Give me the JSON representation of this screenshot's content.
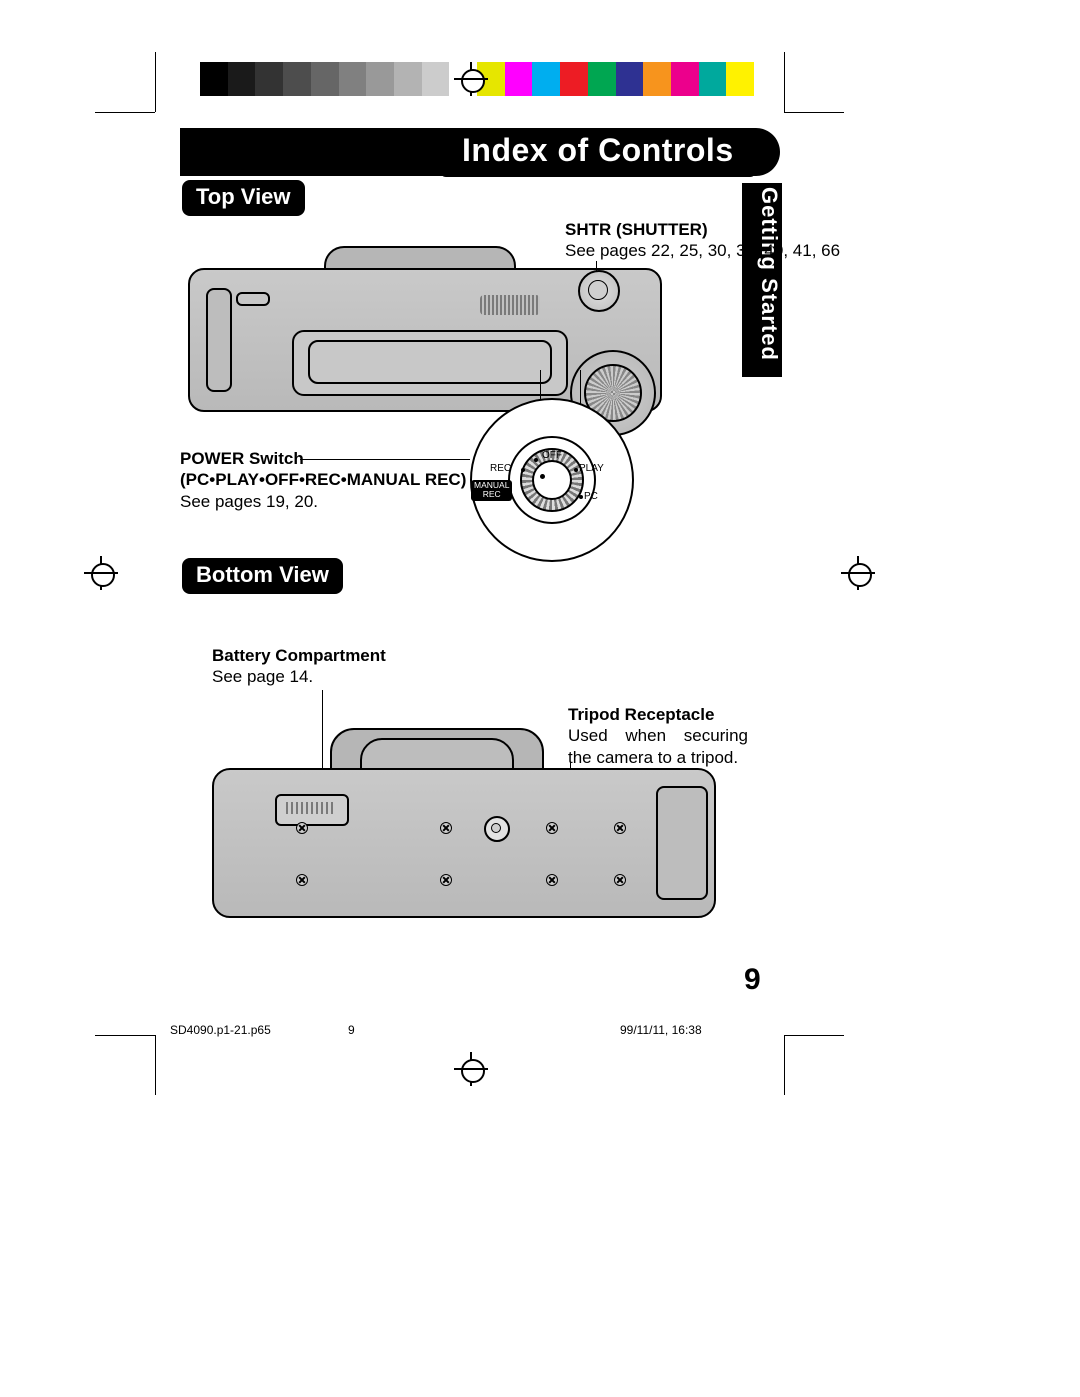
{
  "page_number": "9",
  "header_title": "Index of Controls",
  "side_tab": "Getting Started",
  "sections": {
    "top_view": "Top View",
    "bottom_view": "Bottom View"
  },
  "callouts": {
    "shutter_label": "SHTR (SHUTTER)",
    "shutter_ref": "See pages 22, 25, 30, 31, 40, 41, 66",
    "power_label": "POWER Switch",
    "power_sub": "(PC•PLAY•OFF•REC•MANUAL REC)",
    "power_ref": "See pages 19, 20.",
    "battery_label": "Battery Compartment",
    "battery_ref": "See page 14.",
    "tripod_label": "Tripod Receptacle",
    "tripod_ref": "Used when securing the camera to a tripod."
  },
  "dial": {
    "off": "OFF",
    "rec": "REC",
    "play": "PLAY",
    "pc": "PC",
    "manual": "MANUAL",
    "manual_rec": "REC"
  },
  "footer": {
    "file": "SD4090.p1-21.p65",
    "mid": "9",
    "timestamp": "99/11/11, 16:38"
  },
  "colors": {
    "swatches": [
      "#000000",
      "#1a1a1a",
      "#333333",
      "#4d4d4d",
      "#666666",
      "#808080",
      "#999999",
      "#b3b3b3",
      "#cccccc",
      "#ffffff",
      "#e6e600",
      "#ff00ff",
      "#00aeef",
      "#ed1c24",
      "#00a651",
      "#2e3192",
      "#f7941d",
      "#ec008c",
      "#00a99d",
      "#fff200"
    ]
  }
}
